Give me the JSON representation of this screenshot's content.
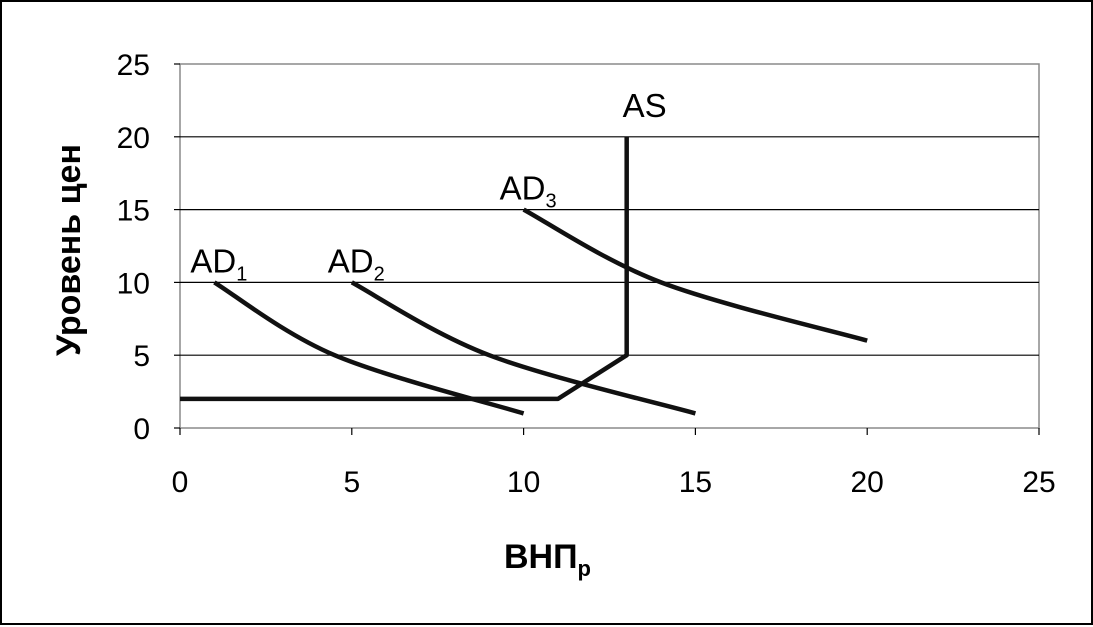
{
  "chart_data": {
    "type": "line",
    "title": "",
    "xlabel": "ВНП",
    "xlabel_subscript": "р",
    "ylabel": "Уровень цен",
    "xlim": [
      0,
      25
    ],
    "ylim": [
      0,
      25
    ],
    "x_ticks": [
      "0",
      "5",
      "10",
      "15",
      "20",
      "25"
    ],
    "y_ticks": [
      "0",
      "5",
      "10",
      "15",
      "20",
      "25"
    ],
    "grid": "horizontal",
    "legend": "none",
    "series": [
      {
        "name": "AD",
        "subscript": "1",
        "points": [
          [
            1,
            10
          ],
          [
            4.5,
            5
          ],
          [
            10,
            1
          ]
        ]
      },
      {
        "name": "AD",
        "subscript": "2",
        "points": [
          [
            5,
            10
          ],
          [
            9,
            5
          ],
          [
            15,
            1
          ]
        ]
      },
      {
        "name": "AD",
        "subscript": "3",
        "points": [
          [
            10,
            15
          ],
          [
            14,
            10
          ],
          [
            20,
            6
          ]
        ]
      },
      {
        "name": "AS",
        "subscript": "",
        "points": [
          [
            0,
            2
          ],
          [
            11,
            2
          ],
          [
            13,
            5
          ],
          [
            13,
            20
          ]
        ]
      }
    ]
  }
}
